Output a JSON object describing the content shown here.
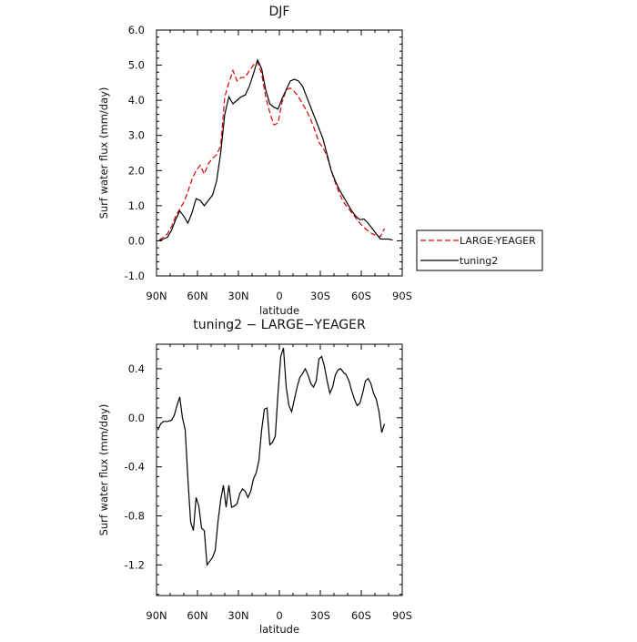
{
  "chart_data": [
    {
      "type": "line",
      "title": "DJF",
      "xlabel": "latitude",
      "ylabel": "Surf water flux (mm/day)",
      "xlim": [
        90,
        -90
      ],
      "ylim": [
        -1.0,
        6.0
      ],
      "x_ticks": [
        90,
        60,
        30,
        0,
        -30,
        -60,
        -90
      ],
      "x_tick_labels": [
        "90N",
        "60N",
        "30N",
        "0",
        "30S",
        "60S",
        "90S"
      ],
      "y_ticks": [
        -1.0,
        0.0,
        1.0,
        2.0,
        3.0,
        4.0,
        5.0,
        6.0
      ],
      "y_tick_labels": [
        "-1.0",
        "0.0",
        "1.0",
        "2.0",
        "3.0",
        "4.0",
        "5.0",
        "6.0"
      ],
      "grid": false,
      "legend_placement": "right",
      "series": [
        {
          "name": "LARGE-YEAGER",
          "color": "#e00000",
          "dash": "dashed",
          "x": [
            88,
            85,
            82,
            79,
            76,
            73,
            70,
            67,
            64,
            61,
            58,
            55,
            52,
            49,
            46,
            43,
            40,
            37,
            34,
            31,
            28,
            25,
            22,
            19,
            16,
            13,
            10,
            7,
            4,
            1,
            -2,
            -5,
            -8,
            -11,
            -14,
            -17,
            -20,
            -23,
            -26,
            -29,
            -32,
            -35,
            -38,
            -41,
            -44,
            -47,
            -50,
            -53,
            -56,
            -59,
            -62,
            -65,
            -68,
            -71,
            -74,
            -77,
            -80,
            -83,
            -86
          ],
          "y": [
            0.02,
            0.1,
            0.2,
            0.4,
            0.7,
            0.9,
            1.1,
            1.4,
            1.75,
            2.0,
            2.15,
            1.9,
            2.2,
            2.35,
            2.45,
            2.7,
            4.1,
            4.5,
            4.85,
            4.55,
            4.65,
            4.65,
            4.85,
            5.0,
            5.1,
            4.75,
            4.1,
            3.65,
            3.3,
            3.35,
            3.95,
            4.3,
            4.35,
            4.25,
            4.1,
            3.9,
            3.7,
            3.45,
            3.15,
            2.8,
            2.65,
            2.4,
            2.0,
            1.65,
            1.35,
            1.1,
            0.95,
            0.8,
            0.65,
            0.5,
            0.38,
            0.28,
            0.2,
            0.15,
            0.12,
            0.35,
            null,
            null,
            null
          ]
        },
        {
          "name": "tuning2",
          "color": "#000000",
          "dash": "solid",
          "x": [
            88,
            85,
            82,
            79,
            76,
            73,
            70,
            67,
            64,
            61,
            58,
            55,
            52,
            49,
            46,
            43,
            40,
            37,
            34,
            31,
            28,
            25,
            22,
            19,
            16,
            13,
            10,
            7,
            4,
            1,
            -2,
            -5,
            -8,
            -11,
            -14,
            -17,
            -20,
            -23,
            -26,
            -29,
            -32,
            -35,
            -38,
            -41,
            -44,
            -47,
            -50,
            -53,
            -56,
            -59,
            -62,
            -65,
            -68,
            -71,
            -74,
            -77,
            -80,
            -83,
            -86
          ],
          "y": [
            0.0,
            0.05,
            0.1,
            0.3,
            0.6,
            0.85,
            0.7,
            0.5,
            0.8,
            1.2,
            1.15,
            1.0,
            1.15,
            1.3,
            1.7,
            2.5,
            3.6,
            4.1,
            3.9,
            4.0,
            4.1,
            4.15,
            4.4,
            4.75,
            5.15,
            4.9,
            4.3,
            3.9,
            3.8,
            3.75,
            4.05,
            4.3,
            4.55,
            4.6,
            4.55,
            4.4,
            4.1,
            3.8,
            3.5,
            3.2,
            2.9,
            2.45,
            2.0,
            1.7,
            1.45,
            1.25,
            1.05,
            0.85,
            0.7,
            0.6,
            0.62,
            0.5,
            0.35,
            0.2,
            0.05,
            0.05,
            0.05,
            0.02,
            null
          ]
        }
      ]
    },
    {
      "type": "line",
      "title": "tuning2 − LARGE−YEAGER",
      "xlabel": "latitude",
      "ylabel": "Surf water flux (mm/day)",
      "xlim": [
        90,
        -90
      ],
      "ylim": [
        -1.45,
        0.6
      ],
      "x_ticks": [
        90,
        60,
        30,
        0,
        -30,
        -60,
        -90
      ],
      "x_tick_labels": [
        "90N",
        "60N",
        "30N",
        "0",
        "30S",
        "60S",
        "90S"
      ],
      "y_ticks": [
        -1.2,
        -0.8,
        -0.4,
        0.0,
        0.4
      ],
      "y_tick_labels": [
        "-1.2",
        "-0.8",
        "-0.4",
        "0.0",
        "0.4"
      ],
      "grid": false,
      "series": [
        {
          "color": "#000000",
          "dash": "solid",
          "x": [
            89,
            87,
            85,
            82,
            79,
            77,
            75,
            73,
            71,
            69,
            67,
            65,
            63,
            61,
            59,
            57,
            55,
            53,
            51,
            49,
            47,
            45,
            43,
            41,
            39,
            37,
            35,
            33,
            31,
            29,
            27,
            25,
            23,
            21,
            19,
            17,
            15,
            13,
            11,
            9,
            7,
            5,
            3,
            1,
            -1,
            -3,
            -5,
            -7,
            -9,
            -11,
            -13,
            -15,
            -17,
            -19,
            -21,
            -23,
            -25,
            -27,
            -29,
            -31,
            -33,
            -35,
            -37,
            -39,
            -41,
            -43,
            -45,
            -47,
            -49,
            -51,
            -53,
            -55,
            -57,
            -59,
            -61,
            -63,
            -65,
            -67,
            -69,
            -71,
            -73,
            -75,
            -77,
            -79,
            -81
          ],
          "y": [
            -0.1,
            -0.05,
            -0.03,
            -0.03,
            -0.02,
            0.02,
            0.1,
            0.17,
            0.0,
            -0.1,
            -0.5,
            -0.85,
            -0.92,
            -0.65,
            -0.72,
            -0.9,
            -0.92,
            -1.2,
            -1.17,
            -1.14,
            -1.08,
            -0.85,
            -0.67,
            -0.55,
            -0.73,
            -0.55,
            -0.73,
            -0.72,
            -0.7,
            -0.62,
            -0.58,
            -0.6,
            -0.65,
            -0.6,
            -0.5,
            -0.45,
            -0.35,
            -0.1,
            0.07,
            0.08,
            -0.22,
            -0.2,
            -0.15,
            0.2,
            0.5,
            0.57,
            0.25,
            0.1,
            0.05,
            0.15,
            0.25,
            0.33,
            0.36,
            0.4,
            0.35,
            0.28,
            0.25,
            0.3,
            0.48,
            0.5,
            0.42,
            0.3,
            0.2,
            0.25,
            0.35,
            0.39,
            0.4,
            0.37,
            0.35,
            0.3,
            0.22,
            0.15,
            0.1,
            0.12,
            0.2,
            0.3,
            0.32,
            0.28,
            0.2,
            0.15,
            0.05,
            -0.12,
            -0.05,
            null,
            null
          ]
        }
      ]
    }
  ]
}
